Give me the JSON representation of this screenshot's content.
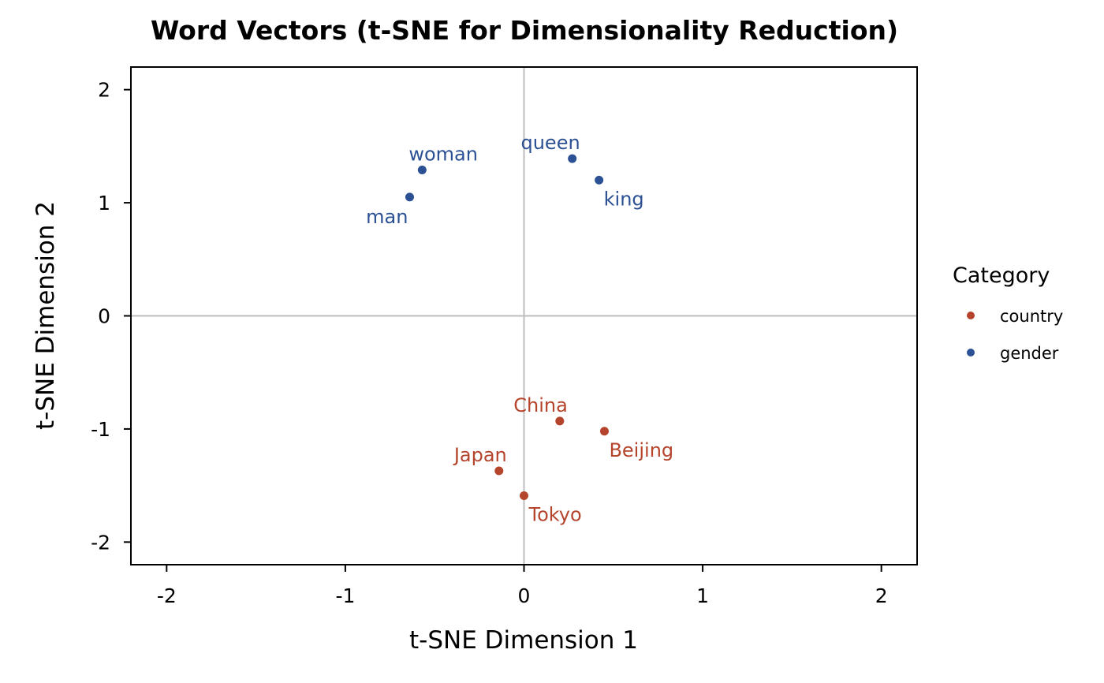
{
  "chart_data": {
    "type": "scatter",
    "title": "Word Vectors (t-SNE for Dimensionality Reduction)",
    "xlabel": "t-SNE Dimension 1",
    "ylabel": "t-SNE Dimension 2",
    "xlim": [
      -2.2,
      2.2
    ],
    "ylim": [
      -2.2,
      2.2
    ],
    "x_ticks": [
      -2,
      -1,
      0,
      1,
      2
    ],
    "y_ticks": [
      -2,
      -1,
      0,
      1,
      2
    ],
    "x_tick_labels": [
      "-2",
      "-1",
      "0",
      "1",
      "2"
    ],
    "y_tick_labels": [
      "-2",
      "-1",
      "0",
      "1",
      "2"
    ],
    "zero_lines": true,
    "grid": false,
    "legend": {
      "title": "Category",
      "placement": "right",
      "entries": [
        {
          "label": "country",
          "color": "#b5442c"
        },
        {
          "label": "gender",
          "color": "#2b5094"
        }
      ]
    },
    "points": [
      {
        "label": "man",
        "x": -0.64,
        "y": 1.05,
        "category": "gender",
        "label_pos": "below-left"
      },
      {
        "label": "woman",
        "x": -0.57,
        "y": 1.29,
        "category": "gender",
        "label_pos": "above-right"
      },
      {
        "label": "queen",
        "x": 0.27,
        "y": 1.39,
        "category": "gender",
        "label_pos": "above-left"
      },
      {
        "label": "king",
        "x": 0.42,
        "y": 1.2,
        "category": "gender",
        "label_pos": "below-right"
      },
      {
        "label": "China",
        "x": 0.2,
        "y": -0.93,
        "category": "country",
        "label_pos": "above-left"
      },
      {
        "label": "Beijing",
        "x": 0.45,
        "y": -1.02,
        "category": "country",
        "label_pos": "below-right"
      },
      {
        "label": "Japan",
        "x": -0.14,
        "y": -1.37,
        "category": "country",
        "label_pos": "above-left"
      },
      {
        "label": "Tokyo",
        "x": 0.0,
        "y": -1.59,
        "category": "country",
        "label_pos": "below-right"
      }
    ]
  }
}
